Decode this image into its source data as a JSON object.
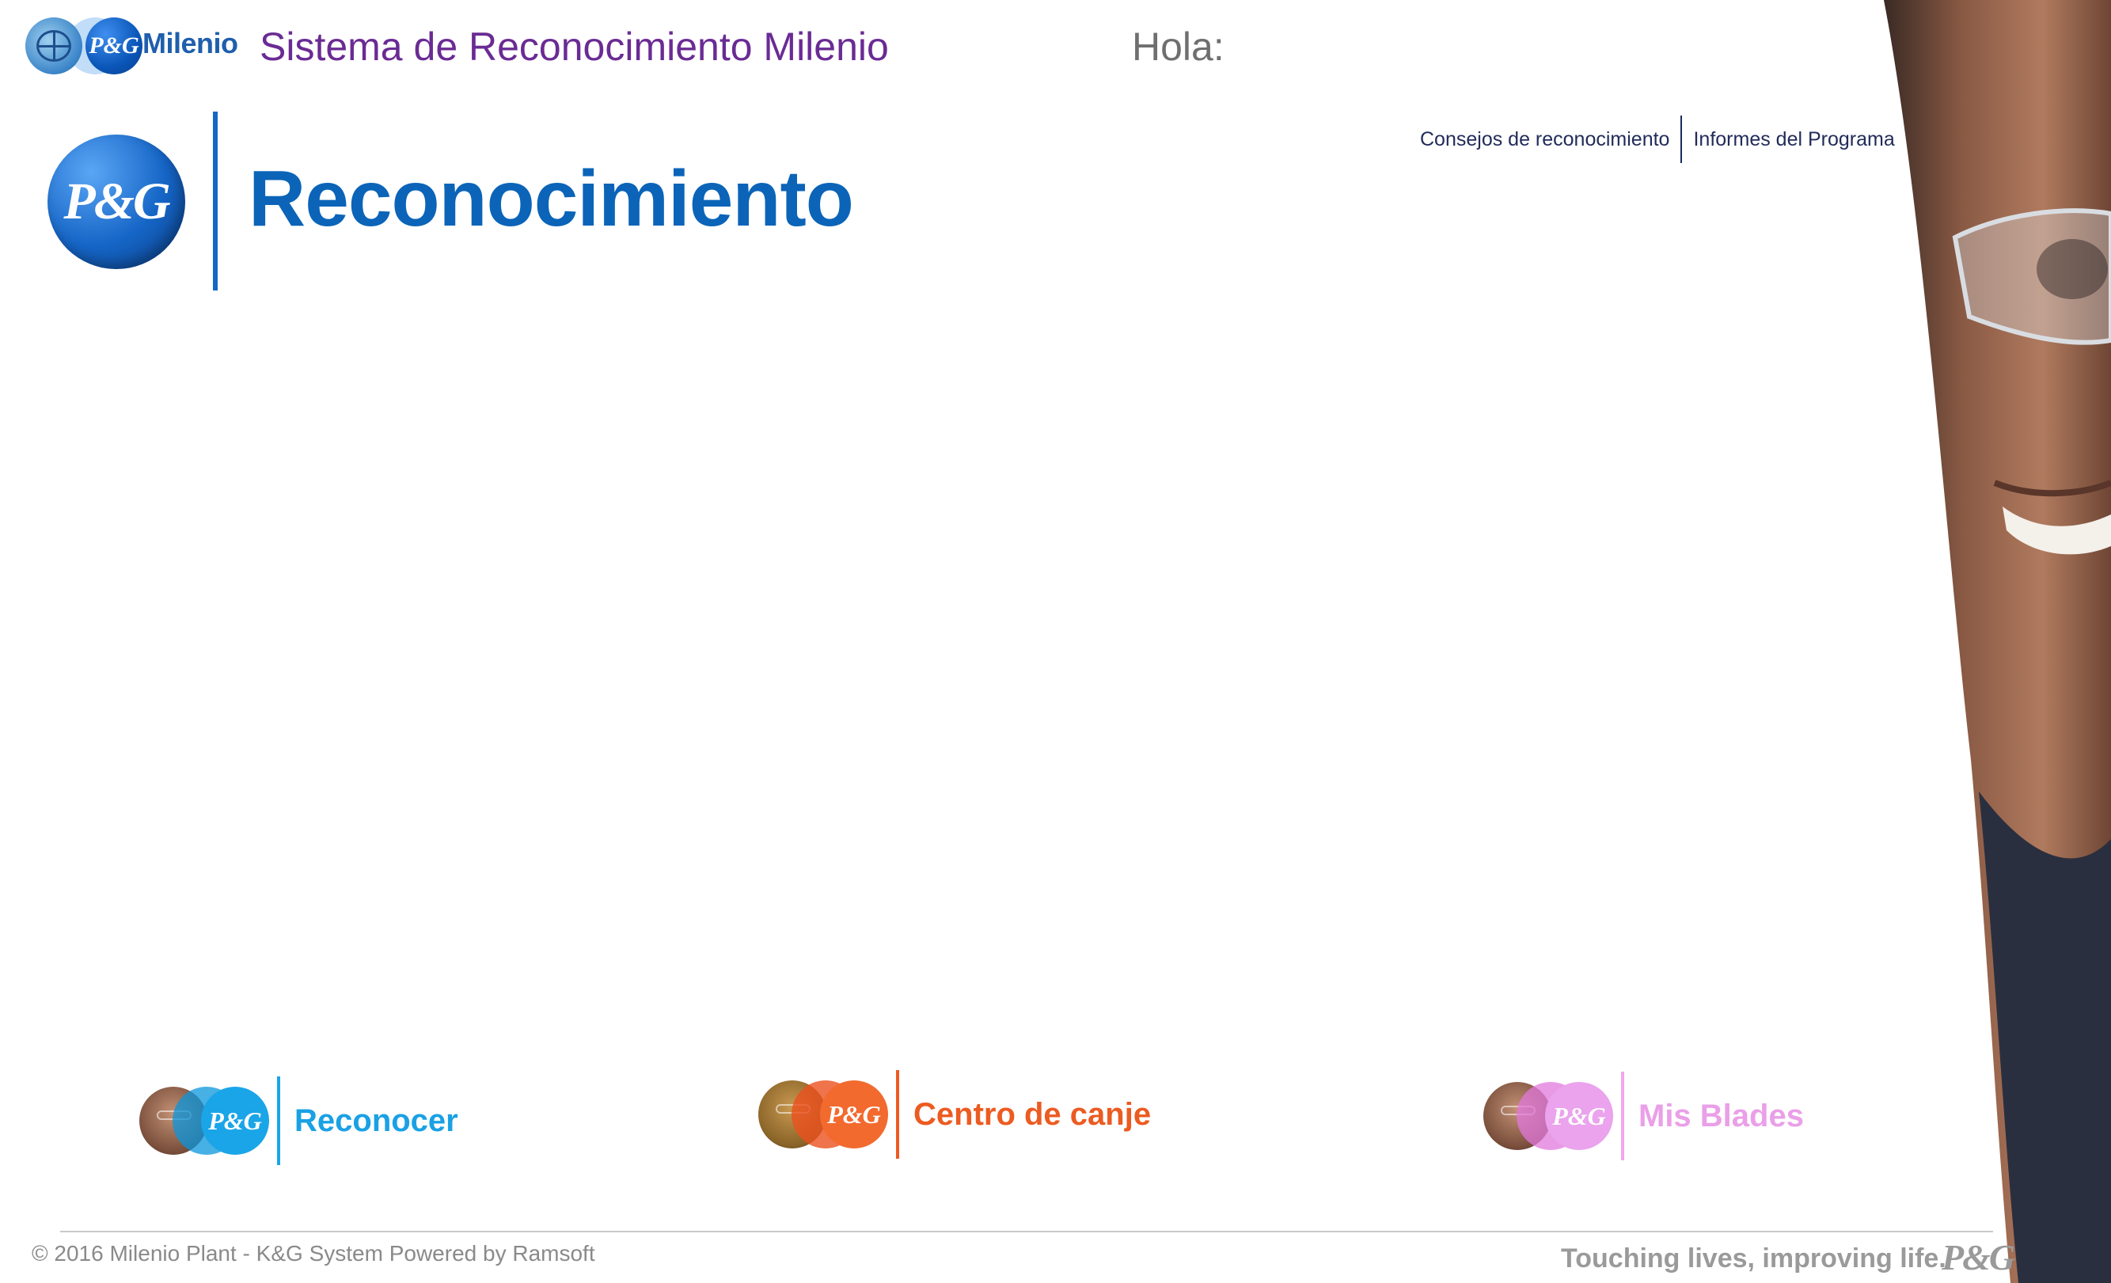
{
  "header": {
    "mini_logo_text": "P&G",
    "milenio_text": "Milenio",
    "system_title": "Sistema de Reconocimiento Milenio",
    "greeting": "Hola:"
  },
  "top_links": [
    {
      "label": "Consejos de reconocimiento"
    },
    {
      "label": "Informes del Programa"
    }
  ],
  "brand": {
    "logo_text": "P&G",
    "title": "Reconocimiento",
    "title_color": "#0b64b8"
  },
  "nav_tiles": [
    {
      "label": "Reconocer",
      "logo_text": "P&G",
      "color": "#1aa1e4"
    },
    {
      "label": "Centro de canje",
      "logo_text": "P&G",
      "color": "#ec5b21"
    },
    {
      "label": "Mis Blades",
      "logo_text": "P&G",
      "color": "#ea9fe8"
    }
  ],
  "footer": {
    "copyright": "© 2016 Milenio Plant - K&G System Powered by Ramsoft",
    "tagline": "Touching lives, improving life.",
    "tagline_logo": "P&G"
  }
}
